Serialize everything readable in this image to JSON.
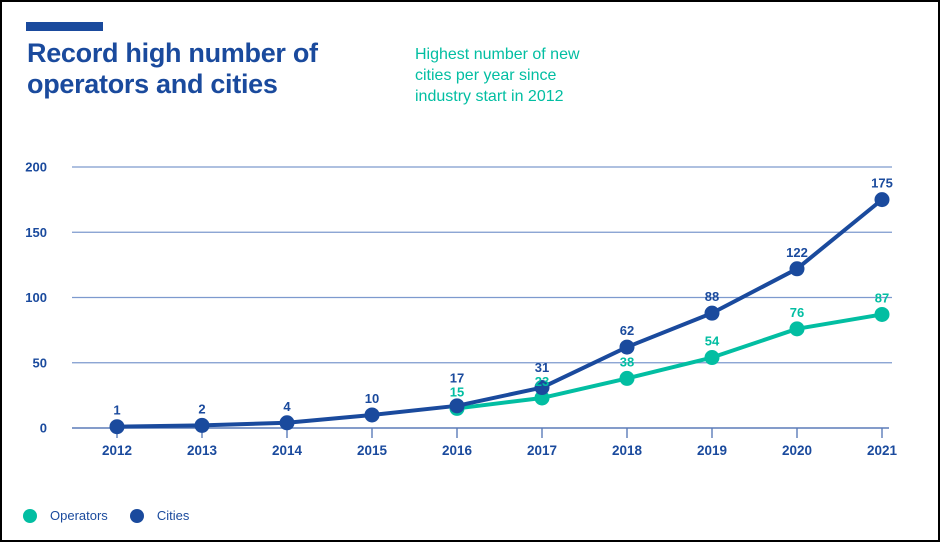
{
  "header": {
    "title_line1": "Record high number of",
    "title_line2": "operators and cities",
    "subtitle": {
      "lines": [
        "Highest number of new",
        "cities per year since",
        "industry start in 2012"
      ]
    }
  },
  "colors": {
    "brand_blue": "#1a4a9d",
    "teal": "#02bea2",
    "gridline": "#7d9ace",
    "axis": "#5b7cb8",
    "background": "#ffffff",
    "border": "#000000"
  },
  "legend": [
    {
      "label": "Operators",
      "color": "#02bea2"
    },
    {
      "label": "Cities",
      "color": "#1a4a9d"
    }
  ],
  "chart_data": {
    "type": "line",
    "title": "Record high number of operators and cities",
    "subtitle": "Highest number of new cities per year since industry start in 2012",
    "categories": [
      "2012",
      "2013",
      "2014",
      "2015",
      "2016",
      "2017",
      "2018",
      "2019",
      "2020",
      "2021"
    ],
    "series": [
      {
        "name": "Operators",
        "color": "#02bea2",
        "values": [
          null,
          null,
          null,
          null,
          15,
          23,
          38,
          54,
          76,
          87
        ]
      },
      {
        "name": "Cities",
        "color": "#1a4a9d",
        "values": [
          1,
          2,
          4,
          10,
          17,
          31,
          62,
          88,
          122,
          175
        ]
      }
    ],
    "xlabel": "",
    "ylabel": "",
    "yticks": [
      0,
      50,
      100,
      150,
      200
    ],
    "ylim": [
      0,
      210
    ],
    "grid": "horizontal",
    "data_labels": true,
    "legend_position": "bottom-left"
  }
}
